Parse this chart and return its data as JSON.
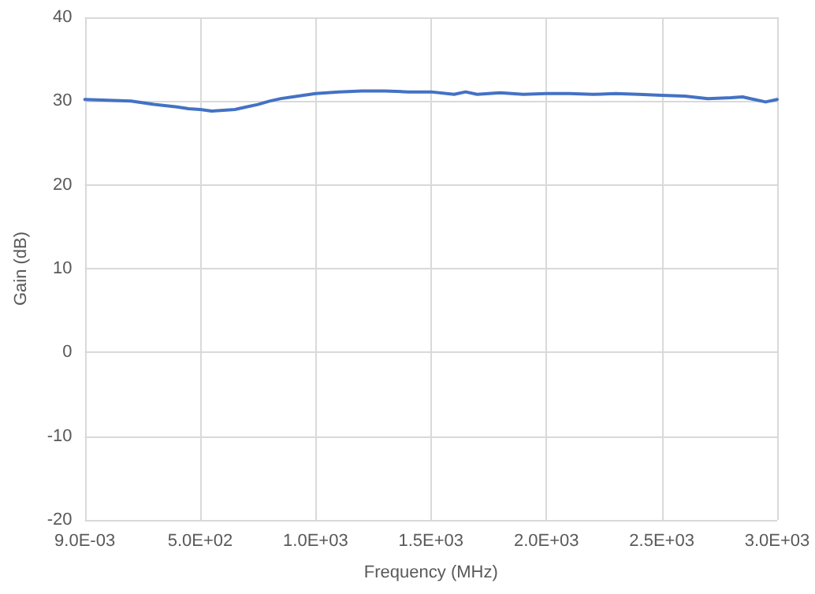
{
  "chart_data": {
    "type": "line",
    "xlabel": "Frequency (MHz)",
    "ylabel": "Gain (dB)",
    "xlim": [
      0.009,
      3000
    ],
    "xticks": [
      {
        "value": 0.009,
        "label": "9.0E-03"
      },
      {
        "value": 500,
        "label": "5.0E+02"
      },
      {
        "value": 1000,
        "label": "1.0E+03"
      },
      {
        "value": 1500,
        "label": "1.5E+03"
      },
      {
        "value": 2000,
        "label": "2.0E+03"
      },
      {
        "value": 2500,
        "label": "2.5E+03"
      },
      {
        "value": 3000,
        "label": "3.0E+03"
      }
    ],
    "ylim": [
      -20,
      40
    ],
    "yticks": [
      -20,
      -10,
      0,
      10,
      20,
      30,
      40
    ],
    "grid": true,
    "marker": "none",
    "line_style": "solid",
    "series": [
      {
        "color": "#4472c4",
        "x": [
          0.009,
          100,
          200,
          300,
          400,
          450,
          500,
          550,
          600,
          650,
          700,
          750,
          800,
          850,
          900,
          1000,
          1100,
          1200,
          1300,
          1400,
          1500,
          1600,
          1650,
          1700,
          1800,
          1900,
          2000,
          2100,
          2200,
          2300,
          2400,
          2500,
          2600,
          2700,
          2800,
          2850,
          2900,
          2950,
          3000
        ],
        "values": [
          30.2,
          30.1,
          30.0,
          29.6,
          29.3,
          29.1,
          29.0,
          28.8,
          28.9,
          29.0,
          29.3,
          29.6,
          30.0,
          30.3,
          30.5,
          30.9,
          31.1,
          31.2,
          31.2,
          31.1,
          31.1,
          30.8,
          31.1,
          30.8,
          31.0,
          30.8,
          30.9,
          30.9,
          30.8,
          30.9,
          30.8,
          30.7,
          30.6,
          30.3,
          30.4,
          30.5,
          30.2,
          29.9,
          30.2
        ]
      }
    ]
  }
}
